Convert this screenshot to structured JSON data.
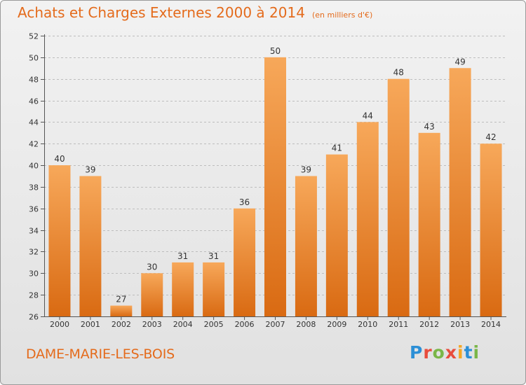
{
  "title": "Achats et Charges Externes 2000 à 2014",
  "subtitle": "(en milliers d'€)",
  "commune": "DAME-MARIE-LES-BOIS",
  "logo_text": "Proxiti",
  "colors": {
    "accent": "#e46b1c",
    "bar_light": "#f7a85a",
    "bar_dark": "#d96a12",
    "axis": "#555555"
  },
  "chart_data": {
    "type": "bar",
    "title": "Achats et Charges Externes 2000 à 2014",
    "subtitle": "(en milliers d'€)",
    "categories": [
      "2000",
      "2001",
      "2002",
      "2003",
      "2004",
      "2005",
      "2006",
      "2007",
      "2008",
      "2009",
      "2010",
      "2011",
      "2012",
      "2013",
      "2014"
    ],
    "values": [
      40,
      39,
      27,
      30,
      31,
      31,
      36,
      50,
      39,
      41,
      44,
      48,
      43,
      49,
      42
    ],
    "ylim": [
      26,
      52
    ],
    "yticks": [
      26,
      28,
      30,
      32,
      34,
      36,
      38,
      40,
      42,
      44,
      46,
      48,
      50,
      52
    ],
    "grid": true,
    "data_labels": true
  }
}
